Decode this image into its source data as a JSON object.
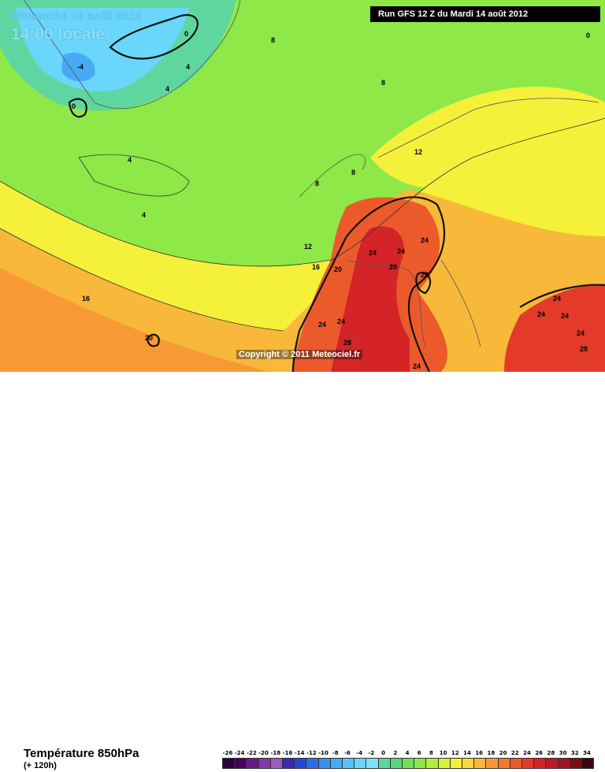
{
  "header": {
    "date": "Dimanche 19 août 2012",
    "time": "14:00 locale",
    "run": "Run GFS 12 Z du Mardi 14 août 2012"
  },
  "copyright": "Copyright © 2011 Meteociel.fr",
  "legend": {
    "title": "Température 850hPa",
    "subtitle": "(+ 120h)",
    "scale": [
      {
        "v": "-26",
        "c": "#2a003a"
      },
      {
        "v": "-24",
        "c": "#4a0060"
      },
      {
        "v": "-22",
        "c": "#6a1a88"
      },
      {
        "v": "-20",
        "c": "#7f3aa8"
      },
      {
        "v": "-18",
        "c": "#9a5cc4"
      },
      {
        "v": "-16",
        "c": "#3c2ab0"
      },
      {
        "v": "-14",
        "c": "#2448d0"
      },
      {
        "v": "-12",
        "c": "#2c6ee6"
      },
      {
        "v": "-10",
        "c": "#3a8ef0"
      },
      {
        "v": "-8",
        "c": "#46aaf5"
      },
      {
        "v": "-6",
        "c": "#55c3fa"
      },
      {
        "v": "-4",
        "c": "#6ad6fc"
      },
      {
        "v": "-2",
        "c": "#7ee3f5"
      },
      {
        "v": "0",
        "c": "#5fd6a0"
      },
      {
        "v": "2",
        "c": "#5ad67a"
      },
      {
        "v": "4",
        "c": "#6ee05a"
      },
      {
        "v": "6",
        "c": "#8ee848"
      },
      {
        "v": "8",
        "c": "#b4ee3c"
      },
      {
        "v": "10",
        "c": "#d8f238"
      },
      {
        "v": "12",
        "c": "#f5f03a"
      },
      {
        "v": "14",
        "c": "#f8d83a"
      },
      {
        "v": "16",
        "c": "#f8b83a"
      },
      {
        "v": "18",
        "c": "#f79a36"
      },
      {
        "v": "20",
        "c": "#f27a30"
      },
      {
        "v": "22",
        "c": "#ec5a2c"
      },
      {
        "v": "24",
        "c": "#e43a2a"
      },
      {
        "v": "26",
        "c": "#d42428"
      },
      {
        "v": "28",
        "c": "#bb1a24"
      },
      {
        "v": "30",
        "c": "#9e1420"
      },
      {
        "v": "32",
        "c": "#7a0e18"
      },
      {
        "v": "34",
        "c": "#3a0810"
      }
    ]
  },
  "isotherm_labels": [
    "0",
    "0",
    "-4",
    "4",
    "4",
    "8",
    "8",
    "4",
    "4",
    "0",
    "8",
    "8",
    "12",
    "12",
    "16",
    "16",
    "20",
    "20",
    "20",
    "24",
    "24",
    "24",
    "24",
    "24",
    "24",
    "24",
    "28",
    "28",
    "20",
    "24",
    "24",
    "24"
  ]
}
